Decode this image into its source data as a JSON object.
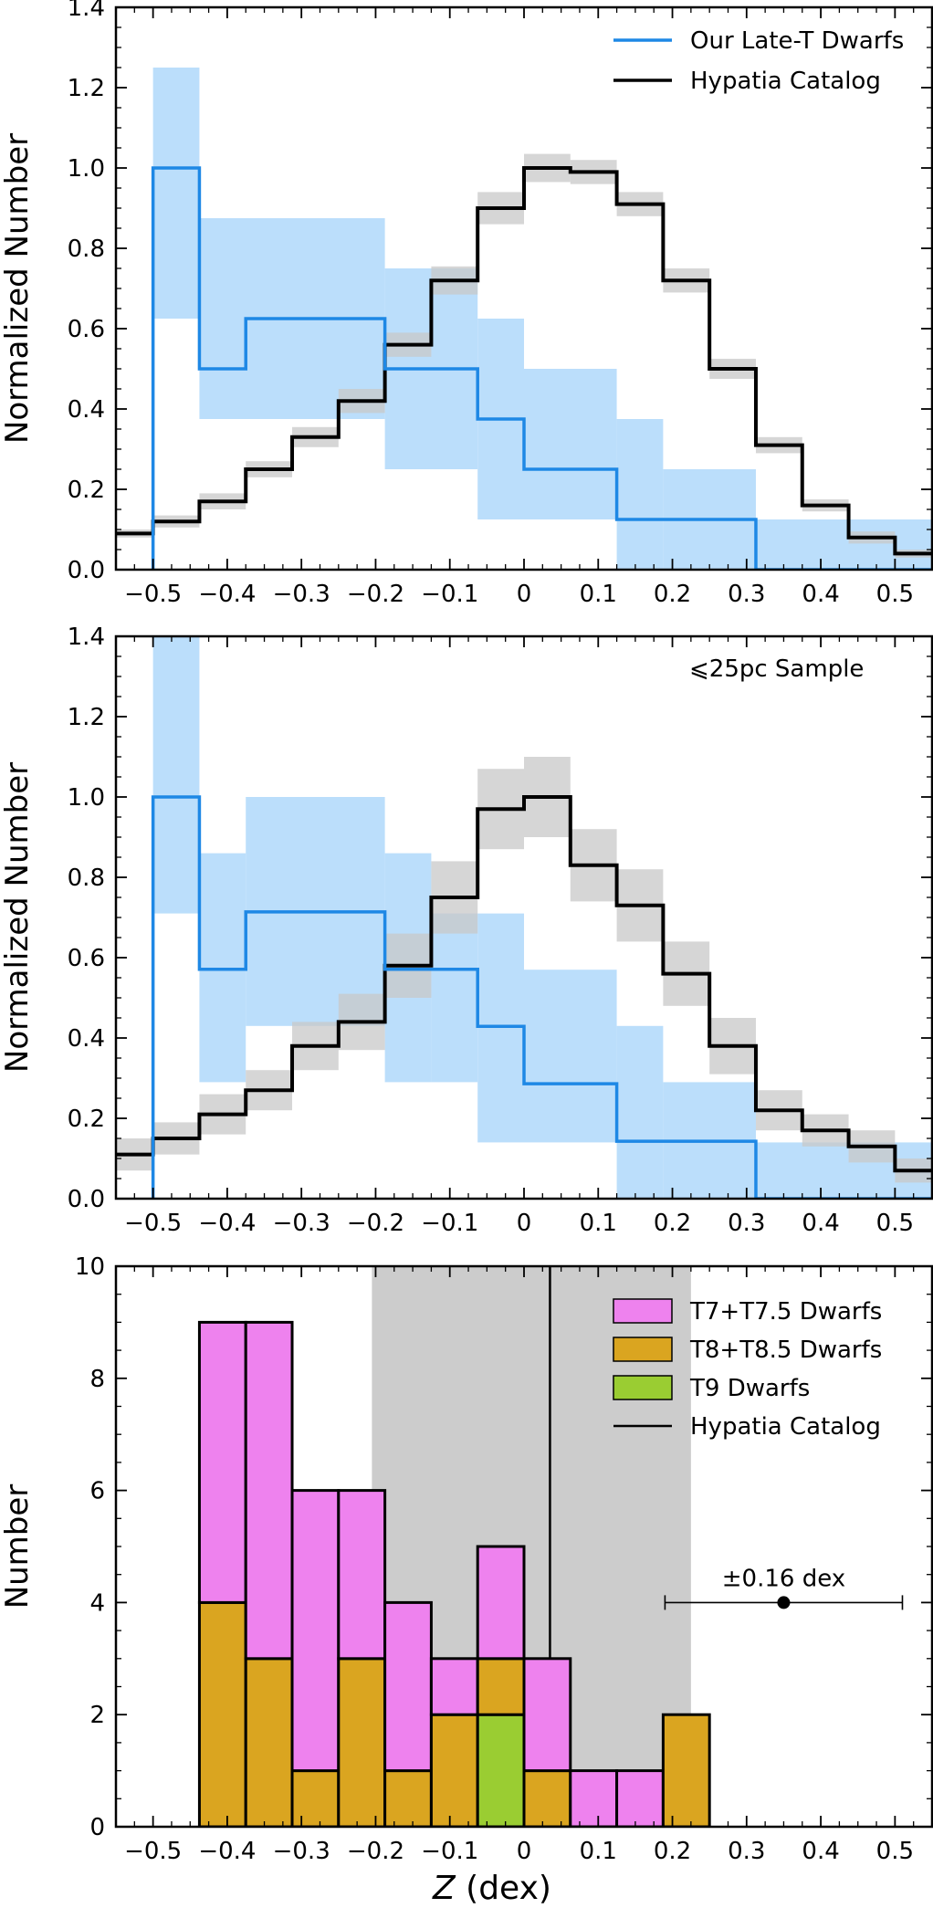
{
  "colors": {
    "blue": "#1e88e5",
    "blue_fill": "#bbdefb",
    "black": "#000000",
    "gray_fill": "#c8c8c8",
    "magenta": "#ee82ee",
    "orange": "#daa520",
    "green": "#9acd32",
    "gray_band": "#cccccc"
  },
  "chart_data": [
    {
      "type": "histogram-step",
      "xlabel": "",
      "ylabel": "Normalized Number",
      "xlim": [
        -0.55,
        0.55
      ],
      "ylim": [
        0,
        1.4
      ],
      "xticks": [
        -0.5,
        -0.4,
        -0.3,
        -0.2,
        -0.1,
        0,
        0.1,
        0.2,
        0.3,
        0.4,
        0.5
      ],
      "xtick_labels": [
        "−0.5",
        "−0.4",
        "−0.3",
        "−0.2",
        "−0.1",
        "0",
        "0.1",
        "0.2",
        "0.3",
        "0.4",
        "0.5"
      ],
      "yticks": [
        0,
        0.2,
        0.4,
        0.6,
        0.8,
        1.0,
        1.2,
        1.4
      ],
      "ytick_labels": [
        "0.0",
        "0.2",
        "0.4",
        "0.6",
        "0.8",
        "1.0",
        "1.2",
        "1.4"
      ],
      "annotation": "",
      "legend": {
        "placement": "top-right",
        "entries": [
          {
            "label": "Our Late-T Dwarfs",
            "color": "#1e88e5",
            "text_color": "#1e88e5"
          },
          {
            "label": "Hypatia Catalog",
            "color": "#000000",
            "text_color": "#000000"
          }
        ]
      },
      "series": [
        {
          "name": "Our Late-T Dwarfs",
          "edges": [
            -0.5,
            -0.4375,
            -0.375,
            -0.1875,
            -0.0625,
            0.0,
            0.125,
            0.3125,
            0.55
          ],
          "values": [
            1.0,
            0.5,
            0.625,
            0.5,
            0.375,
            0.25,
            0.125,
            0.0
          ],
          "band_edges": [
            -0.5,
            -0.4375,
            -0.1875,
            -0.0625,
            0.0,
            0.125,
            0.1875,
            0.3125,
            0.55
          ],
          "band_lower": [
            0.625,
            0.375,
            0.25,
            0.125,
            0.125,
            0.0,
            0.0,
            0.0
          ],
          "band_upper": [
            1.25,
            0.875,
            0.75,
            0.625,
            0.5,
            0.375,
            0.25,
            0.125
          ],
          "color": "#1e88e5",
          "fill": "#bbdefb"
        },
        {
          "name": "Hypatia Catalog",
          "edges": [
            -0.55,
            -0.5,
            -0.4375,
            -0.375,
            -0.3125,
            -0.25,
            -0.1875,
            -0.125,
            -0.0625,
            0.0,
            0.0625,
            0.125,
            0.1875,
            0.25,
            0.3125,
            0.375,
            0.4375,
            0.5,
            0.55
          ],
          "values": [
            0.09,
            0.12,
            0.17,
            0.25,
            0.33,
            0.42,
            0.56,
            0.72,
            0.9,
            1.0,
            0.99,
            0.91,
            0.72,
            0.5,
            0.31,
            0.16,
            0.08,
            0.04
          ],
          "band_halfwidth": [
            0.01,
            0.015,
            0.02,
            0.02,
            0.025,
            0.03,
            0.03,
            0.035,
            0.04,
            0.035,
            0.03,
            0.03,
            0.03,
            0.025,
            0.02,
            0.015,
            0.015,
            0.01
          ],
          "color": "#000000",
          "fill": "#c8c8c8"
        }
      ]
    },
    {
      "type": "histogram-step",
      "xlabel": "",
      "ylabel": "Normalized Number",
      "xlim": [
        -0.55,
        0.55
      ],
      "ylim": [
        0,
        1.4
      ],
      "xticks": [
        -0.5,
        -0.4,
        -0.3,
        -0.2,
        -0.1,
        0,
        0.1,
        0.2,
        0.3,
        0.4,
        0.5
      ],
      "xtick_labels": [
        "−0.5",
        "−0.4",
        "−0.3",
        "−0.2",
        "−0.1",
        "0",
        "0.1",
        "0.2",
        "0.3",
        "0.4",
        "0.5"
      ],
      "yticks": [
        0,
        0.2,
        0.4,
        0.6,
        0.8,
        1.0,
        1.2,
        1.4
      ],
      "ytick_labels": [
        "0.0",
        "0.2",
        "0.4",
        "0.6",
        "0.8",
        "1.0",
        "1.2",
        "1.4"
      ],
      "annotation": "⩽25pc Sample",
      "legend": null,
      "series": [
        {
          "name": "",
          "edges": [
            -0.5,
            -0.4375,
            -0.375,
            -0.1875,
            -0.0625,
            0.0,
            0.125,
            0.3125,
            0.55
          ],
          "values": [
            1.0,
            0.571,
            0.714,
            0.571,
            0.429,
            0.286,
            0.143,
            0.0
          ],
          "band_edges": [
            -0.5,
            -0.4375,
            -0.375,
            -0.1875,
            -0.125,
            -0.0625,
            0.0,
            0.125,
            0.1875,
            0.3125,
            0.55
          ],
          "band_lower": [
            0.71,
            0.29,
            0.43,
            0.29,
            0.29,
            0.14,
            0.14,
            0.0,
            0.0,
            0.0
          ],
          "band_upper": [
            1.43,
            0.86,
            1.0,
            0.86,
            0.71,
            0.71,
            0.57,
            0.43,
            0.29,
            0.14
          ],
          "color": "#1e88e5",
          "fill": "#bbdefb"
        },
        {
          "name": "",
          "edges": [
            -0.55,
            -0.5,
            -0.4375,
            -0.375,
            -0.3125,
            -0.25,
            -0.1875,
            -0.125,
            -0.0625,
            0.0,
            0.0625,
            0.125,
            0.1875,
            0.25,
            0.3125,
            0.375,
            0.4375,
            0.5,
            0.55
          ],
          "values": [
            0.11,
            0.15,
            0.21,
            0.27,
            0.38,
            0.44,
            0.58,
            0.75,
            0.97,
            1.0,
            0.83,
            0.73,
            0.56,
            0.38,
            0.22,
            0.17,
            0.13,
            0.07
          ],
          "band_halfwidth": [
            0.04,
            0.04,
            0.05,
            0.05,
            0.06,
            0.07,
            0.08,
            0.09,
            0.1,
            0.1,
            0.09,
            0.09,
            0.08,
            0.07,
            0.05,
            0.04,
            0.04,
            0.03
          ],
          "color": "#000000",
          "fill": "#c8c8c8"
        }
      ]
    },
    {
      "type": "stacked-histogram",
      "xlabel": "Z (dex)",
      "xlabel_italic": "Z",
      "xlabel_rest": " (dex)",
      "ylabel": "Number",
      "xlim": [
        -0.55,
        0.55
      ],
      "ylim": [
        0,
        10
      ],
      "xticks": [
        -0.5,
        -0.4,
        -0.3,
        -0.2,
        -0.1,
        0,
        0.1,
        0.2,
        0.3,
        0.4,
        0.5
      ],
      "xtick_labels": [
        "−0.5",
        "−0.4",
        "−0.3",
        "−0.2",
        "−0.1",
        "0",
        "0.1",
        "0.2",
        "0.3",
        "0.4",
        "0.5"
      ],
      "yticks": [
        0,
        2,
        4,
        6,
        8,
        10
      ],
      "ytick_labels": [
        "0",
        "2",
        "4",
        "6",
        "8",
        "10"
      ],
      "hypatia_line": {
        "x": 0.035,
        "band": [
          -0.205,
          0.225
        ]
      },
      "error_bar": {
        "x": 0.35,
        "y": 4,
        "halfwidth": 0.16,
        "label": "±0.16 dex"
      },
      "legend": {
        "placement": "top-right",
        "entries": [
          {
            "label": "T7+T7.5 Dwarfs",
            "color": "#ee82ee",
            "kind": "patch"
          },
          {
            "label": "T8+T8.5 Dwarfs",
            "color": "#daa520",
            "kind": "patch"
          },
          {
            "label": "T9 Dwarfs",
            "color": "#9acd32",
            "kind": "patch"
          },
          {
            "label": "Hypatia Catalog",
            "color": "#000000",
            "kind": "line"
          }
        ]
      },
      "bin_edges": [
        -0.4375,
        -0.375,
        -0.3125,
        -0.25,
        -0.1875,
        -0.125,
        -0.0625,
        0.0,
        0.0625,
        0.125,
        0.1875,
        0.25
      ],
      "series": [
        {
          "name": "T9 Dwarfs",
          "values": [
            0,
            0,
            0,
            0,
            0,
            0,
            2,
            0,
            0,
            0,
            0
          ],
          "color": "#9acd32"
        },
        {
          "name": "T8+T8.5 Dwarfs",
          "values": [
            4,
            3,
            1,
            3,
            1,
            2,
            1,
            1,
            0,
            0,
            2
          ],
          "color": "#daa520"
        },
        {
          "name": "T7+T7.5 Dwarfs",
          "values": [
            5,
            6,
            5,
            3,
            3,
            1,
            2,
            2,
            1,
            1,
            0
          ],
          "color": "#ee82ee"
        }
      ]
    }
  ]
}
